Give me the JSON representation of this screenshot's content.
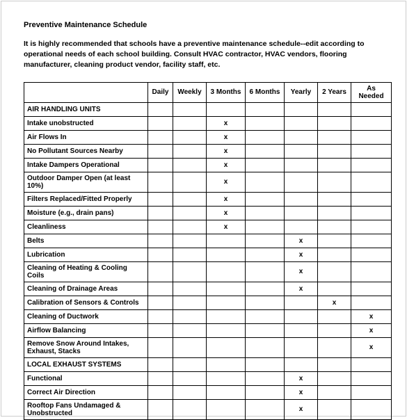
{
  "title": "Preventive Maintenance Schedule",
  "intro": "It is highly recommended that schools have a preventive maintenance schedule--edit according to operational needs of each school building. Consult HVAC contractor, HVAC vendors, flooring manufacturer, cleaning product vendor, facility staff, etc.",
  "columns": [
    "Daily",
    "Weekly",
    "3 Months",
    "6 Months",
    "Yearly",
    "2 Years",
    "As Needed"
  ],
  "rows": [
    {
      "type": "section",
      "label": "AIR HANDLING UNITS"
    },
    {
      "label": "Intake unobstructed",
      "marks": [
        "",
        "",
        "x",
        "",
        "",
        "",
        ""
      ]
    },
    {
      "label": "Air Flows In",
      "marks": [
        "",
        "",
        "x",
        "",
        "",
        "",
        ""
      ]
    },
    {
      "label": "No Pollutant Sources Nearby",
      "marks": [
        "",
        "",
        "x",
        "",
        "",
        "",
        ""
      ]
    },
    {
      "label": "Intake Dampers Operational",
      "marks": [
        "",
        "",
        "x",
        "",
        "",
        "",
        ""
      ]
    },
    {
      "label": "Outdoor Damper Open (at least 10%)",
      "marks": [
        "",
        "",
        "x",
        "",
        "",
        "",
        ""
      ]
    },
    {
      "label": "Filters Replaced/Fitted Properly",
      "marks": [
        "",
        "",
        "x",
        "",
        "",
        "",
        ""
      ]
    },
    {
      "label": "Moisture (e.g., drain pans)",
      "marks": [
        "",
        "",
        "x",
        "",
        "",
        "",
        ""
      ]
    },
    {
      "label": "Cleanliness",
      "marks": [
        "",
        "",
        "x",
        "",
        "",
        "",
        ""
      ]
    },
    {
      "label": "Belts",
      "marks": [
        "",
        "",
        "",
        "",
        "x",
        "",
        ""
      ]
    },
    {
      "label": "Lubrication",
      "marks": [
        "",
        "",
        "",
        "",
        "x",
        "",
        ""
      ]
    },
    {
      "label": "Cleaning of Heating & Cooling Coils",
      "marks": [
        "",
        "",
        "",
        "",
        "x",
        "",
        ""
      ]
    },
    {
      "label": "Cleaning of Drainage Areas",
      "marks": [
        "",
        "",
        "",
        "",
        "x",
        "",
        ""
      ]
    },
    {
      "label": "Calibration of Sensors & Controls",
      "marks": [
        "",
        "",
        "",
        "",
        "",
        "x",
        ""
      ]
    },
    {
      "label": "Cleaning of Ductwork",
      "marks": [
        "",
        "",
        "",
        "",
        "",
        "",
        "x"
      ]
    },
    {
      "label": "Airflow Balancing",
      "marks": [
        "",
        "",
        "",
        "",
        "",
        "",
        "x"
      ]
    },
    {
      "label": "Remove Snow Around Intakes, Exhaust, Stacks",
      "marks": [
        "",
        "",
        "",
        "",
        "",
        "",
        "x"
      ]
    },
    {
      "type": "section",
      "label": "LOCAL EXHAUST SYSTEMS"
    },
    {
      "label": "Functional",
      "marks": [
        "",
        "",
        "",
        "",
        "x",
        "",
        ""
      ]
    },
    {
      "label": "Correct Air Direction",
      "marks": [
        "",
        "",
        "",
        "",
        "x",
        "",
        ""
      ]
    },
    {
      "label": "Rooftop Fans Undamaged & Unobstructed",
      "marks": [
        "",
        "",
        "",
        "",
        "x",
        "",
        ""
      ]
    }
  ],
  "styling": {
    "font_family": "Arial",
    "title_fontsize": 11,
    "intro_fontsize": 10.5,
    "cell_fontsize": 10,
    "text_color": "#000000",
    "border_color": "#000000",
    "page_border_color": "#cccccc",
    "background_color": "#ffffff",
    "mark_glyph": "x"
  }
}
